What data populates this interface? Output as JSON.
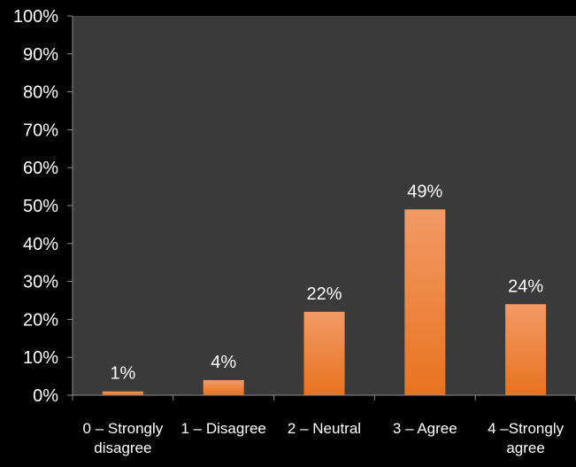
{
  "chart_data": {
    "type": "bar",
    "categories": [
      [
        "0 – Strongly",
        "disagree"
      ],
      [
        "1 – Disagree"
      ],
      [
        "2 – Neutral"
      ],
      [
        "3 – Agree"
      ],
      [
        "4 –Strongly",
        "agree"
      ]
    ],
    "values": [
      1,
      4,
      22,
      49,
      24
    ],
    "data_labels": [
      "1%",
      "4%",
      "22%",
      "49%",
      "24%"
    ],
    "y_ticks": [
      "0%",
      "10%",
      "20%",
      "30%",
      "40%",
      "50%",
      "60%",
      "70%",
      "80%",
      "90%",
      "100%"
    ],
    "ylim": [
      0,
      100
    ],
    "grid": false,
    "colors": {
      "page_background": "#000000",
      "plot_background": "#3a3a3a",
      "bar_top": "#f29a66",
      "bar_bottom": "#e8731f",
      "text": "#ffffff",
      "axis": "#8a8a8a"
    }
  }
}
